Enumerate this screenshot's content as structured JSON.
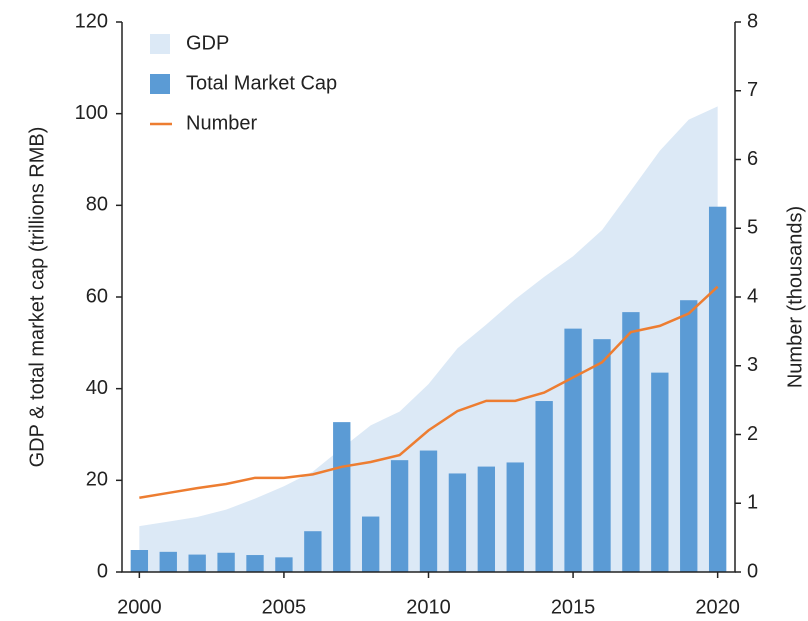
{
  "chart_data": {
    "type": "combo",
    "ylabel": "GDP & total market cap (trillions RMB)",
    "y2label": "Number (thousands)",
    "x": [
      2000,
      2001,
      2002,
      2003,
      2004,
      2005,
      2006,
      2007,
      2008,
      2009,
      2010,
      2011,
      2012,
      2013,
      2014,
      2015,
      2016,
      2017,
      2018,
      2019,
      2020
    ],
    "xlim": [
      1999.4,
      2020.6
    ],
    "xticks": [
      2000,
      2005,
      2010,
      2015,
      2020
    ],
    "ylim": [
      0,
      120
    ],
    "yticks": [
      0,
      20,
      40,
      60,
      80,
      100,
      120
    ],
    "y2lim": [
      0,
      8
    ],
    "y2ticks": [
      0,
      1,
      2,
      3,
      4,
      5,
      6,
      7,
      8
    ],
    "legend": "upper left",
    "series": [
      {
        "name": "GDP",
        "type": "area",
        "color": "#dce9f6",
        "values": [
          10,
          11,
          12,
          13.6,
          16,
          18.7,
          21.9,
          27,
          32,
          35,
          41,
          48.8,
          54,
          59.5,
          64.4,
          68.9,
          74.6,
          83.2,
          91.9,
          98.7,
          101.6
        ]
      },
      {
        "name": "Total Market Cap",
        "type": "bar",
        "color": "#5b9bd5",
        "values": [
          4.8,
          4.4,
          3.8,
          4.2,
          3.7,
          3.2,
          8.9,
          32.7,
          12.1,
          24.4,
          26.5,
          21.5,
          23.0,
          23.9,
          37.3,
          53.1,
          50.8,
          56.7,
          43.5,
          59.3,
          79.7
        ]
      },
      {
        "name": "Number",
        "type": "line",
        "color": "#ed7d31",
        "axis": "y2",
        "values": [
          1.08,
          1.15,
          1.22,
          1.28,
          1.37,
          1.37,
          1.42,
          1.53,
          1.6,
          1.7,
          2.06,
          2.34,
          2.49,
          2.49,
          2.61,
          2.83,
          3.05,
          3.49,
          3.58,
          3.76,
          4.15
        ]
      }
    ]
  }
}
